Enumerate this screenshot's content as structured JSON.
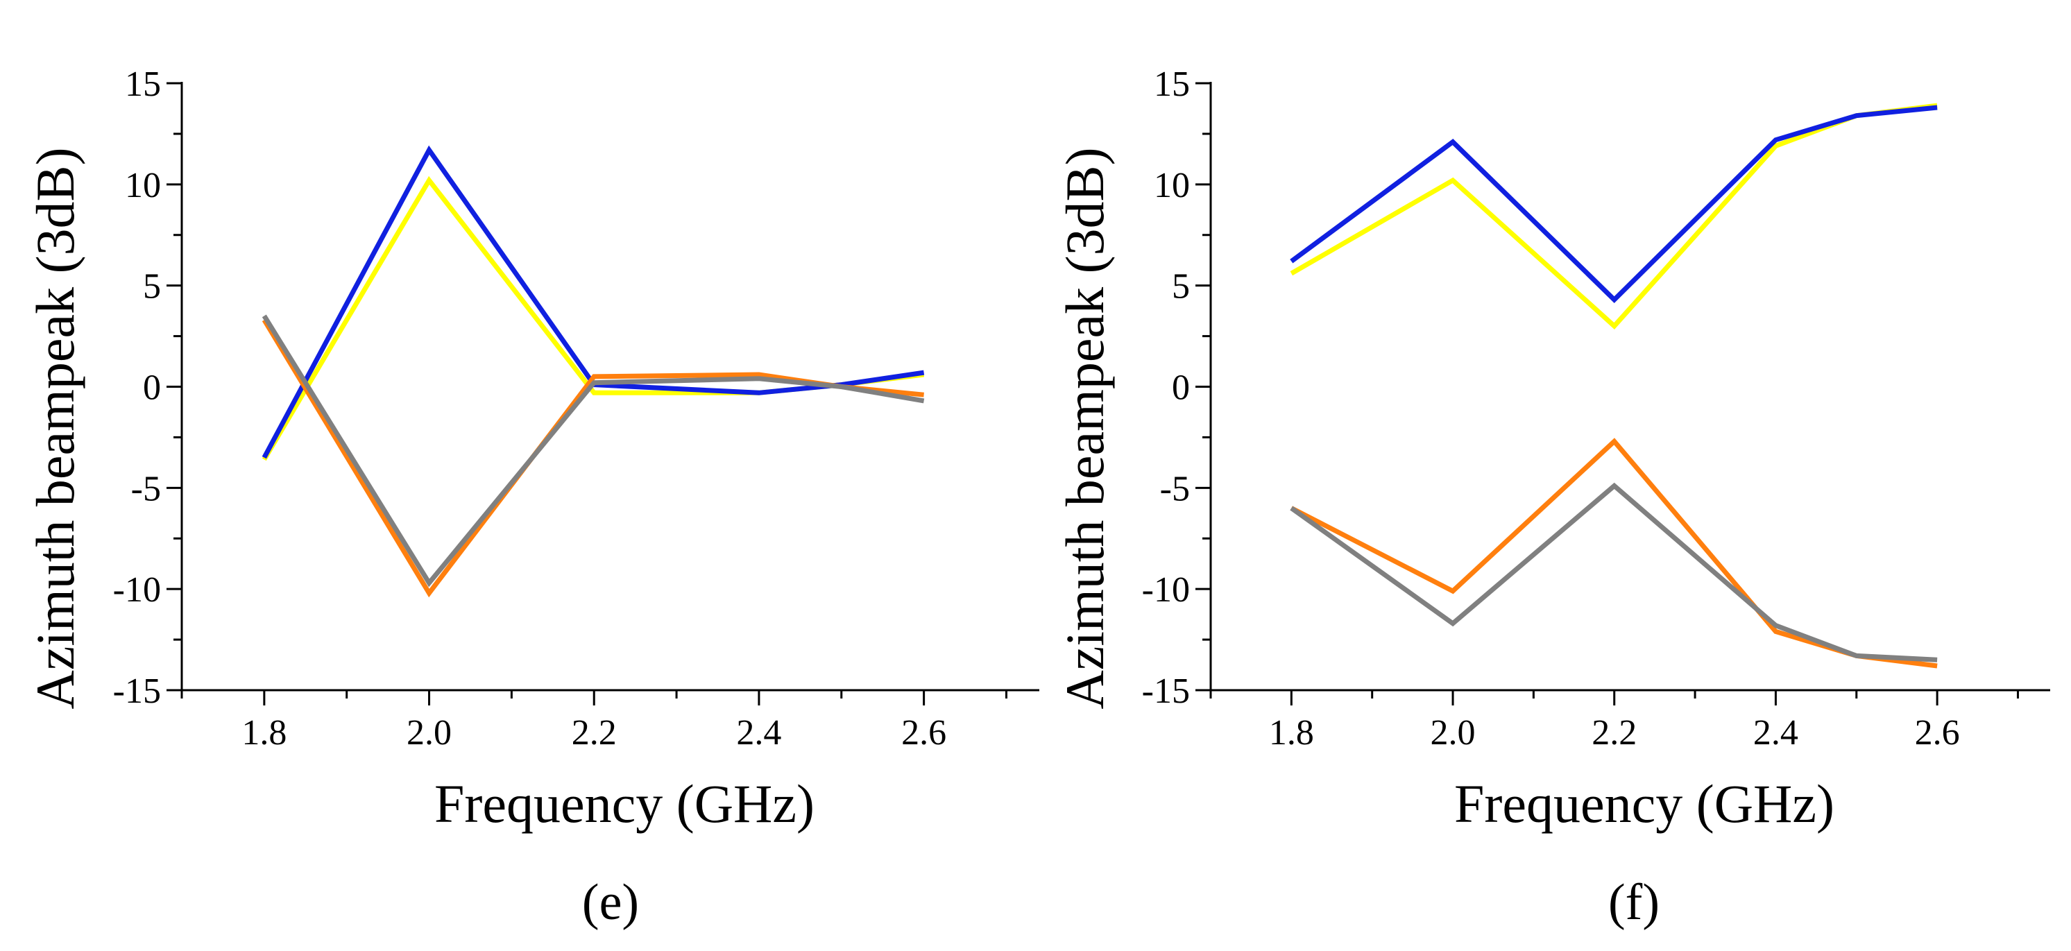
{
  "chart_data": [
    {
      "type": "line",
      "caption": "(e)",
      "xlabel": "Frequency (GHz)",
      "ylabel": "Azimuth beampeak (3dB)",
      "xlim": [
        1.7,
        2.74
      ],
      "ylim": [
        -15,
        15
      ],
      "xticks": [
        1.8,
        2.0,
        2.2,
        2.4,
        2.6
      ],
      "xtick_labels": [
        "1.8",
        "2.0",
        "2.2",
        "2.4",
        "2.6"
      ],
      "yticks": [
        15,
        10,
        5,
        0,
        -5,
        -10,
        -15
      ],
      "ytick_labels": [
        "15",
        "10",
        "5",
        "0",
        "-5",
        "-10",
        "-15"
      ],
      "x": [
        1.8,
        2.0,
        2.2,
        2.4,
        2.5,
        2.6
      ],
      "series": [
        {
          "name": "yellow",
          "color": "#ffff00",
          "values": [
            -3.6,
            10.2,
            -0.3,
            -0.3,
            0.1,
            0.6
          ]
        },
        {
          "name": "blue",
          "color": "#1020e0",
          "values": [
            -3.5,
            11.7,
            0.1,
            -0.3,
            0.1,
            0.7
          ]
        },
        {
          "name": "orange",
          "color": "#ff7f0e",
          "values": [
            3.3,
            -10.2,
            0.5,
            0.6,
            0.0,
            -0.4
          ]
        },
        {
          "name": "gray",
          "color": "#808080",
          "values": [
            3.5,
            -9.7,
            0.2,
            0.4,
            0.0,
            -0.7
          ]
        }
      ]
    },
    {
      "type": "line",
      "caption": "(f)",
      "xlabel": "Frequency (GHz)",
      "ylabel": "Azimuth beampeak (3dB)",
      "xlim": [
        1.7,
        2.74
      ],
      "ylim": [
        -15,
        15
      ],
      "xticks": [
        1.8,
        2.0,
        2.2,
        2.4,
        2.6
      ],
      "xtick_labels": [
        "1.8",
        "2.0",
        "2.2",
        "2.4",
        "2.6"
      ],
      "yticks": [
        15,
        10,
        5,
        0,
        -5,
        -10,
        -15
      ],
      "ytick_labels": [
        "15",
        "10",
        "5",
        "0",
        "-5",
        "-10",
        "-15"
      ],
      "x": [
        1.8,
        2.0,
        2.2,
        2.4,
        2.5,
        2.6
      ],
      "series": [
        {
          "name": "yellow",
          "color": "#ffff00",
          "values": [
            5.6,
            10.2,
            3.0,
            11.9,
            13.4,
            13.9
          ]
        },
        {
          "name": "blue",
          "color": "#1020e0",
          "values": [
            6.2,
            12.1,
            4.3,
            12.2,
            13.4,
            13.8
          ]
        },
        {
          "name": "orange",
          "color": "#ff7f0e",
          "values": [
            -6.0,
            -10.1,
            -2.7,
            -12.1,
            -13.3,
            -13.8
          ]
        },
        {
          "name": "gray",
          "color": "#808080",
          "values": [
            -6.0,
            -11.7,
            -4.9,
            -11.8,
            -13.3,
            -13.5
          ]
        }
      ]
    }
  ]
}
